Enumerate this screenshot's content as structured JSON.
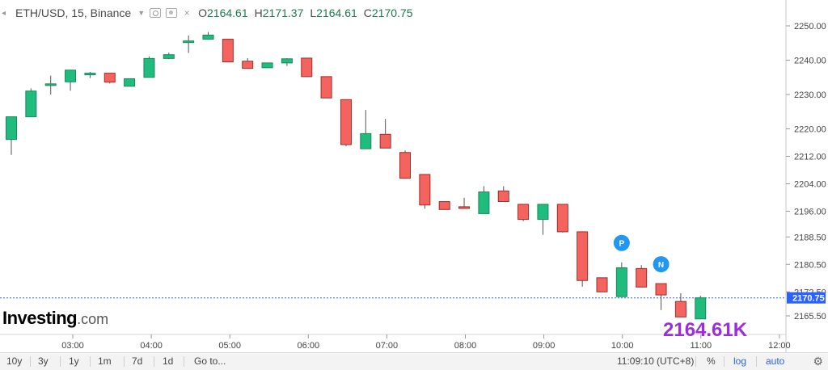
{
  "header": {
    "symbol_title": "ETH/USD, 15, Binance",
    "ohlc": [
      {
        "label": "O",
        "value": "2164.61"
      },
      {
        "label": "H",
        "value": "2171.37"
      },
      {
        "label": "L",
        "value": "2164.61"
      },
      {
        "label": "C",
        "value": "2170.75"
      }
    ]
  },
  "logo": {
    "text": "Investing",
    "suffix": ".com"
  },
  "big_price": "2164.61K",
  "markers": [
    {
      "label": "P",
      "color": "#2196f3"
    },
    {
      "label": "N",
      "color": "#2196f3"
    }
  ],
  "price_label": "2170.75",
  "colors": {
    "up": "#1fbc7e",
    "down": "#f5635e",
    "last_price": "#2962ff",
    "accent": "#9b2de0"
  },
  "bottom_bar": {
    "ranges": [
      "10y",
      "3y",
      "1y",
      "1m",
      "7d",
      "1d",
      "Go to..."
    ],
    "time": "11:09:10",
    "timezone": "(UTC+8)",
    "percent": "%",
    "log": "log",
    "auto": "auto"
  },
  "chart_data": {
    "type": "candlestick",
    "symbol": "ETH/USD",
    "interval": "15",
    "y_ticks": [
      2250.0,
      2240.0,
      2230.0,
      2220.0,
      2212.0,
      2204.0,
      2196.0,
      2188.5,
      2180.5,
      2172.5,
      2165.5
    ],
    "y_tick_labels": [
      "2250.00",
      "2240.00",
      "2230.00",
      "2220.00",
      "2212.00",
      "2204.00",
      "2196.00",
      "2188.50",
      "2180.50",
      "2172.50",
      "2165.50"
    ],
    "x_ticks": [
      "03:00",
      "04:00",
      "05:00",
      "06:00",
      "07:00",
      "08:00",
      "09:00",
      "10:00",
      "11:00",
      "12:00"
    ],
    "ylim": [
      2162,
      2254
    ],
    "candles": [
      {
        "o": 2216.9,
        "h": 2223.5,
        "l": 2212.4,
        "c": 2223.5
      },
      {
        "o": 2223.5,
        "h": 2231.8,
        "l": 2223.5,
        "c": 2231.0
      },
      {
        "o": 2232.7,
        "h": 2235.5,
        "l": 2230.0,
        "c": 2233.1
      },
      {
        "o": 2233.7,
        "h": 2237.1,
        "l": 2231.1,
        "c": 2237.1
      },
      {
        "o": 2236.0,
        "h": 2236.6,
        "l": 2234.8,
        "c": 2236.2
      },
      {
        "o": 2236.2,
        "h": 2236.2,
        "l": 2233.2,
        "c": 2233.6
      },
      {
        "o": 2232.4,
        "h": 2234.6,
        "l": 2232.4,
        "c": 2234.6
      },
      {
        "o": 2235.0,
        "h": 2241.1,
        "l": 2235.0,
        "c": 2240.5
      },
      {
        "o": 2240.5,
        "h": 2242.2,
        "l": 2240.3,
        "c": 2241.6
      },
      {
        "o": 2245.4,
        "h": 2247.2,
        "l": 2242.1,
        "c": 2245.6
      },
      {
        "o": 2246.1,
        "h": 2248.2,
        "l": 2246.0,
        "c": 2247.3
      },
      {
        "o": 2246.1,
        "h": 2246.1,
        "l": 2239.5,
        "c": 2239.5
      },
      {
        "o": 2239.7,
        "h": 2240.6,
        "l": 2237.6,
        "c": 2237.6
      },
      {
        "o": 2237.8,
        "h": 2239.2,
        "l": 2237.8,
        "c": 2239.2
      },
      {
        "o": 2239.2,
        "h": 2240.6,
        "l": 2238.3,
        "c": 2240.4
      },
      {
        "o": 2240.6,
        "h": 2240.6,
        "l": 2235.1,
        "c": 2235.2
      },
      {
        "o": 2235.2,
        "h": 2235.2,
        "l": 2229.0,
        "c": 2229.0
      },
      {
        "o": 2228.5,
        "h": 2228.5,
        "l": 2214.9,
        "c": 2215.4
      },
      {
        "o": 2214.2,
        "h": 2225.5,
        "l": 2214.2,
        "c": 2218.6
      },
      {
        "o": 2218.4,
        "h": 2222.9,
        "l": 2214.4,
        "c": 2214.4
      },
      {
        "o": 2213.1,
        "h": 2213.7,
        "l": 2205.6,
        "c": 2205.6
      },
      {
        "o": 2206.7,
        "h": 2206.7,
        "l": 2196.7,
        "c": 2197.8
      },
      {
        "o": 2198.8,
        "h": 2198.8,
        "l": 2196.5,
        "c": 2196.5
      },
      {
        "o": 2197.3,
        "h": 2199.9,
        "l": 2196.8,
        "c": 2196.8
      },
      {
        "o": 2195.3,
        "h": 2203.3,
        "l": 2195.3,
        "c": 2201.6
      },
      {
        "o": 2201.9,
        "h": 2203.3,
        "l": 2198.8,
        "c": 2198.8
      },
      {
        "o": 2198.0,
        "h": 2198.0,
        "l": 2193.1,
        "c": 2193.6
      },
      {
        "o": 2193.6,
        "h": 2198.0,
        "l": 2189.1,
        "c": 2198.0
      },
      {
        "o": 2198.0,
        "h": 2198.0,
        "l": 2189.8,
        "c": 2190.0
      },
      {
        "o": 2190.0,
        "h": 2190.0,
        "l": 2174.0,
        "c": 2175.8
      },
      {
        "o": 2176.6,
        "h": 2176.6,
        "l": 2172.5,
        "c": 2172.5
      },
      {
        "o": 2171.1,
        "h": 2181.1,
        "l": 2171.1,
        "c": 2179.5
      },
      {
        "o": 2179.3,
        "h": 2180.3,
        "l": 2173.9,
        "c": 2173.9
      },
      {
        "o": 2174.9,
        "h": 2174.9,
        "l": 2167.2,
        "c": 2171.6
      },
      {
        "o": 2169.7,
        "h": 2172.1,
        "l": 2165.2,
        "c": 2165.2
      },
      {
        "o": 2164.61,
        "h": 2171.37,
        "l": 2164.61,
        "c": 2170.75
      }
    ],
    "last_price": 2170.75,
    "markers": [
      {
        "label": "P",
        "candle_index": 31
      },
      {
        "label": "N",
        "candle_index": 33
      }
    ]
  }
}
